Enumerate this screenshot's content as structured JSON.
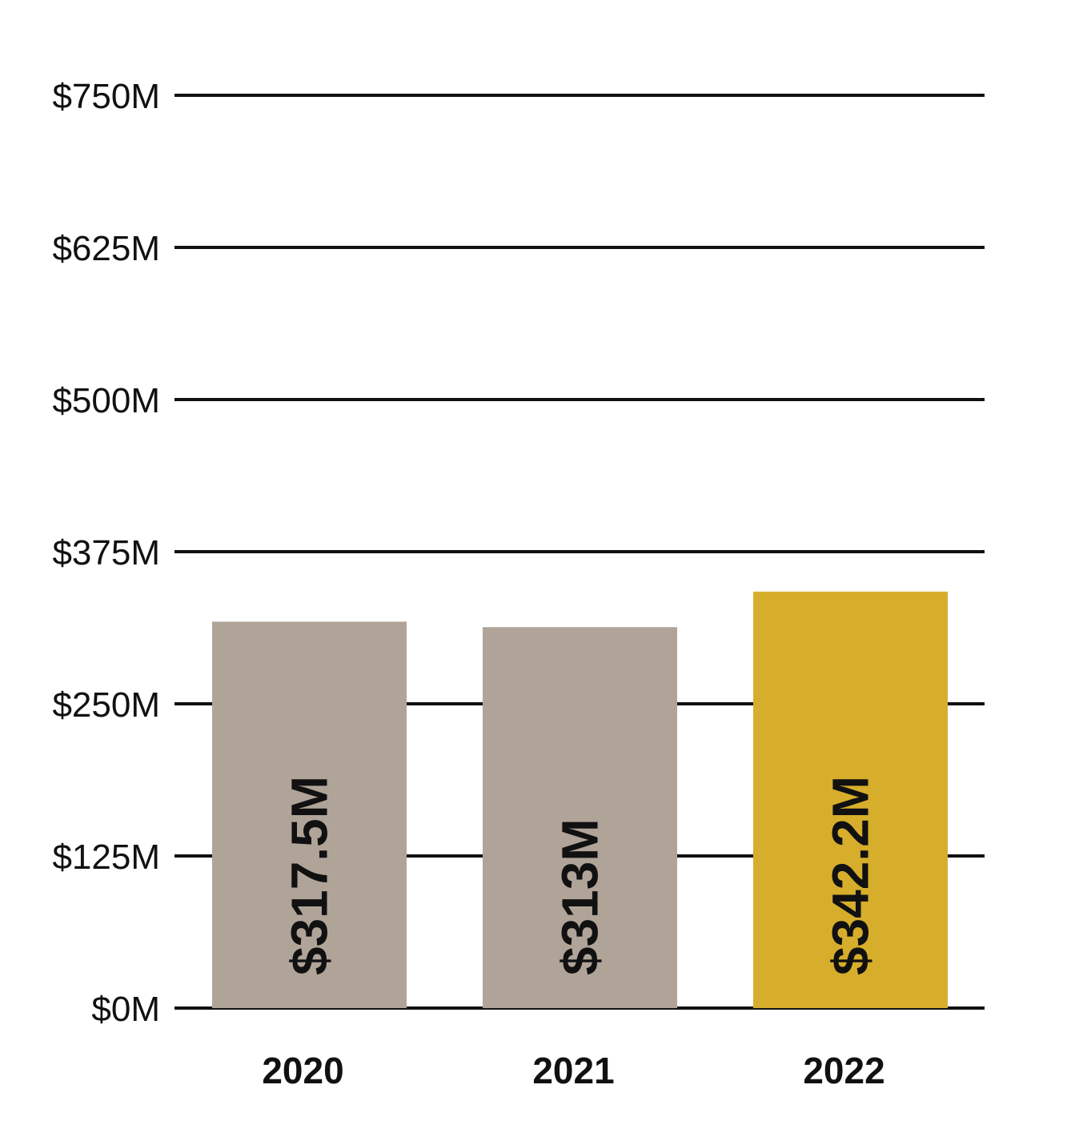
{
  "chart_data": {
    "type": "bar",
    "title": "",
    "xlabel": "",
    "ylabel": "",
    "categories": [
      "2020",
      "2021",
      "2022"
    ],
    "values": [
      317.5,
      313,
      342.2
    ],
    "value_labels": [
      "$317.5M",
      "$313M",
      "$342.2M"
    ],
    "ylim": [
      0,
      750
    ],
    "y_ticks": [
      0,
      125,
      250,
      375,
      500,
      625,
      750
    ],
    "y_tick_labels": [
      "$0M",
      "$125M",
      "$250M",
      "$375M",
      "$500M",
      "$625M",
      "$750M"
    ],
    "grid": true,
    "legend": "none",
    "colors": [
      "#b0a499",
      "#b0a499",
      "#d6ae2c"
    ]
  }
}
